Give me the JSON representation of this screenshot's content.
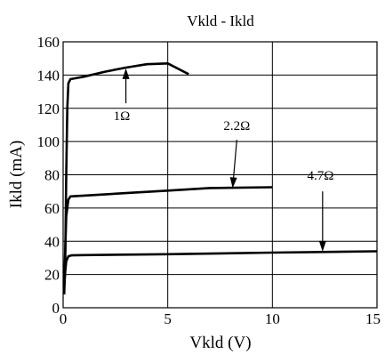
{
  "chart_data": {
    "type": "line",
    "title": "Vkld - Ikld",
    "xlabel": "Vkld (V)",
    "ylabel": "Ikld (mA)",
    "xlim": [
      0,
      15
    ],
    "ylim": [
      0,
      160
    ],
    "xticks": [
      0,
      5,
      10,
      15
    ],
    "yticks": [
      0,
      20,
      40,
      60,
      80,
      100,
      120,
      140,
      160
    ],
    "grid": true,
    "series": [
      {
        "name": "1Ω",
        "points": [
          [
            0.05,
            8
          ],
          [
            0.1,
            30
          ],
          [
            0.15,
            80
          ],
          [
            0.2,
            120
          ],
          [
            0.25,
            135
          ],
          [
            0.35,
            137.5
          ],
          [
            1,
            139
          ],
          [
            2,
            142
          ],
          [
            3,
            144.5
          ],
          [
            4,
            146.5
          ],
          [
            5,
            147
          ],
          [
            6,
            140.5
          ]
        ],
        "label": "1Ω",
        "label_at": [
          2.8,
          113
        ],
        "arrow_from": [
          3,
          123
        ],
        "arrow_to": [
          3,
          144
        ]
      },
      {
        "name": "2.2Ω",
        "points": [
          [
            0.05,
            16
          ],
          [
            0.1,
            35
          ],
          [
            0.15,
            55
          ],
          [
            0.25,
            65
          ],
          [
            0.35,
            67
          ],
          [
            1,
            67.5
          ],
          [
            3,
            69
          ],
          [
            5,
            70.5
          ],
          [
            7,
            72
          ],
          [
            10,
            72.5
          ]
        ],
        "label": "2.2Ω",
        "label_at": [
          8.3,
          107
        ],
        "arrow_from": [
          8.3,
          101
        ],
        "arrow_to": [
          8.1,
          72
        ]
      },
      {
        "name": "4.7Ω",
        "points": [
          [
            0.05,
            12
          ],
          [
            0.1,
            22
          ],
          [
            0.15,
            28
          ],
          [
            0.25,
            31
          ],
          [
            0.4,
            31.5
          ],
          [
            1,
            31.7
          ],
          [
            5,
            32.2
          ],
          [
            10,
            33.2
          ],
          [
            15,
            34
          ]
        ],
        "label": "4.7Ω",
        "label_at": [
          12.3,
          77
        ],
        "arrow_from": [
          12.4,
          70
        ],
        "arrow_to": [
          12.4,
          33.8
        ]
      }
    ]
  }
}
